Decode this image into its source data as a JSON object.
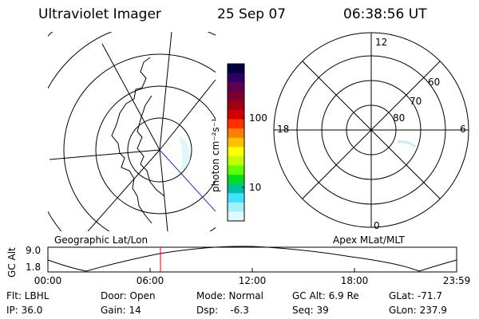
{
  "header": {
    "title": "Ultraviolet Imager",
    "date": "25 Sep 07",
    "time": "06:38:56 UT"
  },
  "colorbar": {
    "unit_label": "photon cm⁻²s⁻¹",
    "tick_100": "100",
    "tick_10": "10",
    "colors": [
      "#000040",
      "#300060",
      "#600050",
      "#7a0030",
      "#a00010",
      "#d00000",
      "#ff3000",
      "#ff8000",
      "#ffc000",
      "#ffff00",
      "#c0ff00",
      "#60ff00",
      "#00e020",
      "#00c0a0",
      "#40e0ff",
      "#a0f0ff",
      "#e0f8ff"
    ]
  },
  "left_map": {
    "label": "Geographic Lat/Lon"
  },
  "right_map": {
    "label": "Apex MLat/MLT",
    "mlt_labels": {
      "top": "12",
      "bottom": "0",
      "left": "18",
      "right": "6"
    },
    "lat_labels": {
      "l60": "60",
      "l70": "70",
      "l80": "80"
    }
  },
  "altitude_plot": {
    "ylabel": "GC Alt",
    "ytick_high": "9.0",
    "ytick_low": "1.8",
    "xticks": [
      "00:00",
      "06:00",
      "12:00",
      "18:00",
      "23:59"
    ],
    "current_marker_time": "06:38:56"
  },
  "info": {
    "flt": "Flt: LBHL",
    "ip": "IP: 36.0",
    "door": "Door: Open",
    "gain": "Gain: 14",
    "mode": "Mode: Normal",
    "dsp": "Dsp:    -6.3",
    "gcalt": "GC Alt: 6.9 Re",
    "seq": "Seq: 39",
    "glat": "GLat: -71.7",
    "glon": "GLon: 237.9"
  }
}
